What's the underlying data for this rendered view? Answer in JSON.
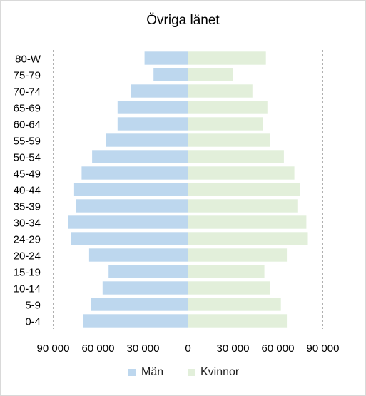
{
  "chart_data": {
    "type": "bar",
    "orientation": "horizontal-pyramid",
    "title": "Övriga länet",
    "categories": [
      "0-4",
      "5-9",
      "10-14",
      "15-19",
      "20-24",
      "24-29",
      "30-34",
      "35-39",
      "40-44",
      "45-49",
      "50-54",
      "55-59",
      "60-64",
      "65-69",
      "70-74",
      "75-79",
      "80-W"
    ],
    "series": [
      {
        "name": "Män",
        "side": "left",
        "color": "#bdd7ee",
        "values": [
          70000,
          65000,
          57000,
          53000,
          66000,
          78000,
          80000,
          75000,
          76000,
          71000,
          64000,
          55000,
          47000,
          47000,
          38000,
          23000,
          29000
        ]
      },
      {
        "name": "Kvinnor",
        "side": "right",
        "color": "#e2efda",
        "values": [
          66000,
          62000,
          55000,
          51000,
          66000,
          80000,
          79000,
          73000,
          75000,
          71000,
          64000,
          55000,
          50000,
          53000,
          43000,
          30000,
          52000
        ]
      }
    ],
    "xlim": [
      -90000,
      90000
    ],
    "xticks": [
      -90000,
      -60000,
      -30000,
      0,
      30000,
      60000,
      90000
    ],
    "xtick_labels": [
      "90 000",
      "60 000",
      "30 000",
      "0",
      "30 000",
      "60 000",
      "90 000"
    ],
    "grid": "vertical dashed",
    "legend_position": "bottom"
  }
}
